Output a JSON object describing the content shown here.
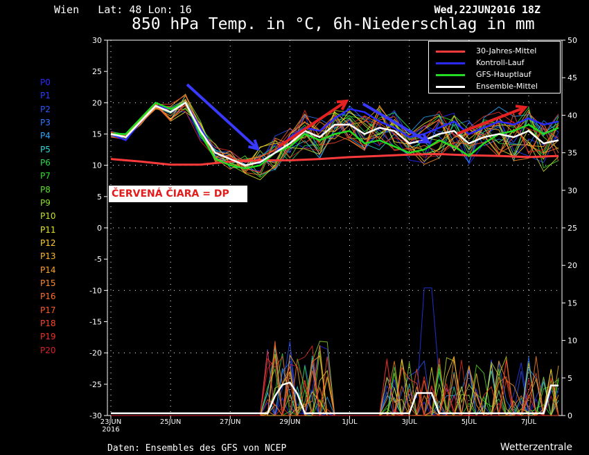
{
  "header": {
    "location": "Wien   Lat: 48 Lon: 16",
    "datetime": "Wed,22JUN2016 18Z",
    "title": "850 hPa Temp. in °C, 6h-Niederschlag in mm"
  },
  "footer": {
    "source": "Daten: Ensembles des GFS von NCEP",
    "brand": "Wetterzentrale"
  },
  "annotation": {
    "text": "ČERVENÁ ČIARA = DP"
  },
  "members": [
    {
      "label": "P0",
      "color": "#2a2aff"
    },
    {
      "label": "P1",
      "color": "#2a3cff"
    },
    {
      "label": "P2",
      "color": "#2a55ff"
    },
    {
      "label": "P3",
      "color": "#2a7bff"
    },
    {
      "label": "P4",
      "color": "#29a8ff"
    },
    {
      "label": "P5",
      "color": "#2fd6d6"
    },
    {
      "label": "P6",
      "color": "#2ad84a"
    },
    {
      "label": "P7",
      "color": "#2ae02a"
    },
    {
      "label": "P8",
      "color": "#5ae02a"
    },
    {
      "label": "P9",
      "color": "#8ee02a"
    },
    {
      "label": "P10",
      "color": "#c8e02a"
    },
    {
      "label": "P11",
      "color": "#e8e82a"
    },
    {
      "label": "P12",
      "color": "#ffd02a"
    },
    {
      "label": "P13",
      "color": "#ffb82a"
    },
    {
      "label": "P14",
      "color": "#ffa02a"
    },
    {
      "label": "P15",
      "color": "#ff8a2a"
    },
    {
      "label": "P16",
      "color": "#ff702a"
    },
    {
      "label": "P17",
      "color": "#ff5a2a"
    },
    {
      "label": "P18",
      "color": "#ff442a"
    },
    {
      "label": "P19",
      "color": "#f0302a"
    },
    {
      "label": "P20",
      "color": "#d8202a"
    }
  ],
  "chart_data": {
    "type": "line",
    "title": "850 hPa Temp. in °C, 6h-Niederschlag in mm",
    "x_tick_labels": [
      "23JUN\n2016",
      "25JUN",
      "27JUN",
      "29JUN",
      "1JUL",
      "3JUL",
      "5JUL",
      "7JUL"
    ],
    "y_left": {
      "ticks": [
        30,
        25,
        20,
        15,
        10,
        5,
        0,
        -5,
        -10,
        -15,
        -20,
        -25,
        -30
      ],
      "range": [
        -30,
        30
      ]
    },
    "y_right": {
      "ticks": [
        50,
        45,
        40,
        35,
        30,
        25,
        20,
        15,
        10,
        5,
        0
      ],
      "range": [
        0,
        50
      ]
    },
    "grid": true,
    "legend_position": "top-right",
    "legend": [
      {
        "label": "30-Jahres-Mittel",
        "color": "#ff3a3a"
      },
      {
        "label": "Kontroll-Lauf",
        "color": "#2a2aff"
      },
      {
        "label": "GFS-Hauptlauf",
        "color": "#22dd22"
      },
      {
        "label": "Ensemble-Mittel",
        "color": "#ffffff"
      }
    ],
    "series": [
      {
        "name": "30-Jahres-Mittel",
        "axis": "left",
        "color": "#ff3a3a",
        "x": [
          0,
          1,
          2,
          3,
          4,
          5,
          6,
          7,
          8,
          9,
          10,
          11,
          12,
          13,
          14,
          15
        ],
        "y": [
          11,
          10.6,
          10.1,
          10.1,
          10.6,
          10.8,
          10.8,
          11,
          11.3,
          11.5,
          11.7,
          11.8,
          11.6,
          11.5,
          11.3,
          11.5
        ]
      },
      {
        "name": "Kontroll-Lauf",
        "axis": "left",
        "color": "#2a2aff",
        "x": [
          0,
          0.5,
          1,
          1.5,
          2,
          2.5,
          3,
          3.5,
          4,
          4.5,
          5,
          5.5,
          6,
          6.5,
          7,
          7.5,
          8,
          8.5,
          9,
          9.5,
          10,
          10.5,
          11,
          11.5,
          12,
          12.5,
          13,
          13.5,
          14,
          14.5,
          15
        ],
        "y": [
          15,
          14,
          17,
          19.5,
          19,
          20,
          16,
          12,
          11,
          10,
          10.5,
          12,
          14.5,
          16,
          15.5,
          17.5,
          19,
          18.5,
          17,
          16,
          14.5,
          15,
          16,
          17,
          15,
          16,
          17,
          16.5,
          17.5,
          16.5,
          17
        ]
      },
      {
        "name": "GFS-Hauptlauf",
        "axis": "left",
        "color": "#22dd22",
        "x": [
          0,
          0.5,
          1,
          1.5,
          2,
          2.5,
          3,
          3.5,
          4,
          4.5,
          5,
          5.5,
          6,
          6.5,
          7,
          7.5,
          8,
          8.5,
          9,
          9.5,
          10,
          10.5,
          11,
          11.5,
          12,
          12.5,
          13,
          13.5,
          14,
          14.5,
          15
        ],
        "y": [
          15,
          15,
          17.5,
          20,
          19,
          20,
          15,
          11,
          10,
          9.5,
          10,
          12,
          13,
          15,
          14,
          15,
          15.5,
          13.5,
          14,
          13,
          12,
          12.5,
          14,
          13,
          11.5,
          13.5,
          15,
          15.5,
          16.5,
          15,
          16
        ]
      },
      {
        "name": "Ensemble-Mittel",
        "axis": "left",
        "color": "#ffffff",
        "x": [
          0,
          0.5,
          1,
          1.5,
          2,
          2.5,
          3,
          3.5,
          4,
          4.5,
          5,
          5.5,
          6,
          6.5,
          7,
          7.5,
          8,
          8.5,
          9,
          9.5,
          10,
          10.5,
          11,
          11.5,
          12,
          12.5,
          13,
          13.5,
          14,
          14.5,
          15
        ],
        "y": [
          15,
          14.5,
          17,
          19.5,
          18.5,
          20,
          15.5,
          12,
          11,
          10,
          10.5,
          12,
          13.5,
          15.5,
          14.5,
          16.5,
          16.5,
          15,
          16,
          15.5,
          13.5,
          14,
          15,
          15.5,
          13.5,
          14.5,
          15,
          14.5,
          15.5,
          13.5,
          14
        ]
      }
    ],
    "precip_axis": "right"
  }
}
